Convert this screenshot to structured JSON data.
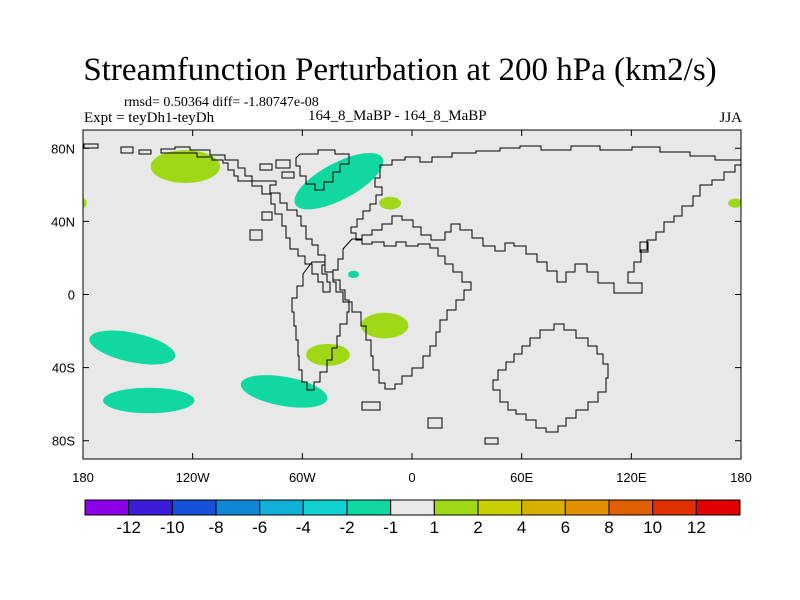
{
  "title": "Streamfunction Perturbation at 200 hPa (km2/s)",
  "stats": "rmsd= 0.50364  diff= -1.80747e-08",
  "expt": "Expt = teyDh1-teyDh",
  "center_label": "164_8_MaBP - 164_8_MaBP",
  "season": "JJA",
  "colors": {
    "background": "#e8e8e8",
    "positive": "#a0d818",
    "negative": "#10d8a0",
    "coast": "#000000"
  },
  "chart_data": {
    "type": "heatmap",
    "title": "Streamfunction Perturbation at 200 hPa (km2/s)",
    "units": "km2/s",
    "x_range": [
      -180,
      180
    ],
    "y_range": [
      -90,
      90
    ],
    "x_ticks": [
      {
        "value": -180,
        "label": "180"
      },
      {
        "value": -120,
        "label": "120W"
      },
      {
        "value": -60,
        "label": "60W"
      },
      {
        "value": 0,
        "label": "0"
      },
      {
        "value": 60,
        "label": "60E"
      },
      {
        "value": 120,
        "label": "120E"
      },
      {
        "value": 180,
        "label": "180"
      }
    ],
    "y_ticks": [
      {
        "value": 80,
        "label": "80N"
      },
      {
        "value": 40,
        "label": "40N"
      },
      {
        "value": 0,
        "label": "0"
      },
      {
        "value": -40,
        "label": "40S"
      },
      {
        "value": -80,
        "label": "80S"
      }
    ],
    "colorbar": {
      "colors": [
        "#8c00e8",
        "#3c1cd8",
        "#1450d8",
        "#1088d8",
        "#10b0d8",
        "#10d0d0",
        "#10d8a0",
        "#e8e8e8",
        "#a0d818",
        "#c8d000",
        "#d8b000",
        "#e09000",
        "#e06000",
        "#e03000",
        "#e00000"
      ],
      "labels": [
        "-12",
        "-10",
        "-8",
        "-6",
        "-4",
        "-2",
        "-1",
        "1",
        "2",
        "4",
        "6",
        "8",
        "10",
        "12"
      ]
    },
    "regions": [
      {
        "name": "north-atlantic-high",
        "sign": "positive",
        "lon": -124,
        "lat": 70,
        "lon_radius": 19,
        "lat_radius": 9
      },
      {
        "name": "arctic-greenland-low",
        "sign": "negative",
        "lon": -40,
        "lat": 62,
        "lon_radius": 27,
        "lat_radius": 10,
        "rotation": -28
      },
      {
        "name": "western-europe-high",
        "sign": "positive",
        "lon": -12,
        "lat": 50,
        "lon_radius": 6,
        "lat_radius": 3.5
      },
      {
        "name": "dateline-east-high",
        "sign": "positive",
        "lon": 177,
        "lat": 50,
        "lon_radius": 4,
        "lat_radius": 2.5
      },
      {
        "name": "dateline-west-high",
        "sign": "positive",
        "lon": -179.5,
        "lat": 50,
        "lon_radius": 1.5,
        "lat_radius": 2.5
      },
      {
        "name": "east-atlantic-small-low",
        "sign": "negative",
        "lon": -32,
        "lat": 11,
        "lon_radius": 3,
        "lat_radius": 2
      },
      {
        "name": "south-atlantic-high",
        "sign": "positive",
        "lon": -15,
        "lat": -17,
        "lon_radius": 13,
        "lat_radius": 7
      },
      {
        "name": "sw-atlantic-high",
        "sign": "positive",
        "lon": -46,
        "lat": -33,
        "lon_radius": 12,
        "lat_radius": 6
      },
      {
        "name": "south-pacific-low",
        "sign": "negative",
        "lon": -153,
        "lat": -29,
        "lon_radius": 24,
        "lat_radius": 8,
        "rotation": 12
      },
      {
        "name": "southern-pacific-low-2",
        "sign": "negative",
        "lon": -144,
        "lat": -58,
        "lon_radius": 25,
        "lat_radius": 7
      },
      {
        "name": "southern-pacific-low-3",
        "sign": "negative",
        "lon": -70,
        "lat": -53,
        "lon_radius": 24,
        "lat_radius": 8,
        "rotation": 10
      }
    ]
  }
}
